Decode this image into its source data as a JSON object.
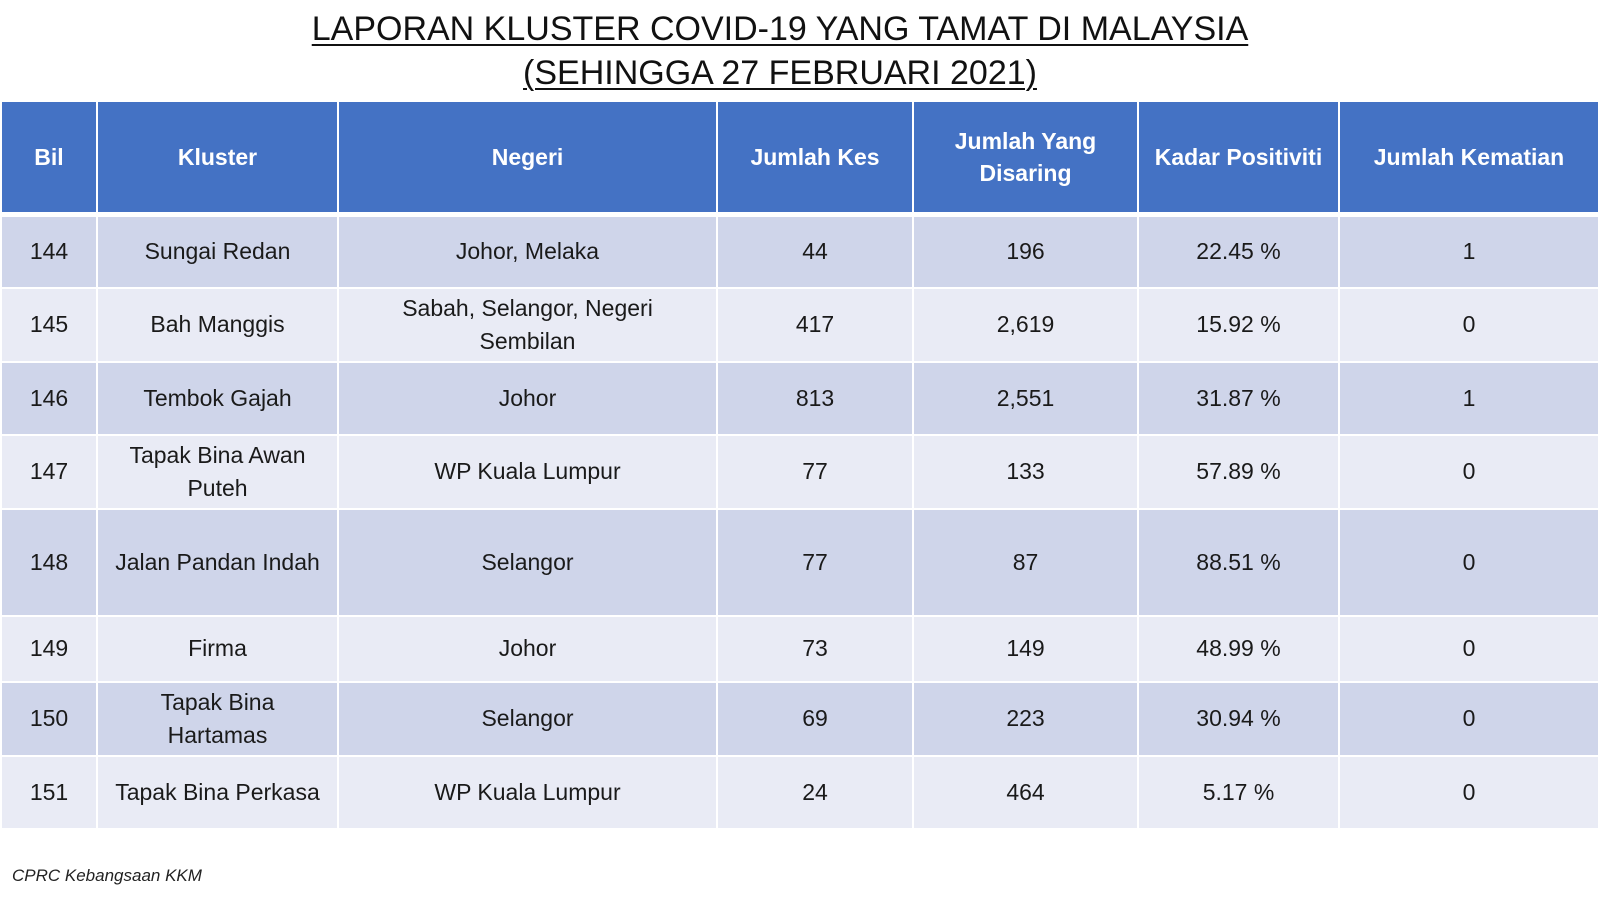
{
  "title": {
    "line1": "LAPORAN KLUSTER COVID-19 YANG TAMAT DI MALAYSIA",
    "line2": "(SEHINGGA  27 FEBRUARI 2021)"
  },
  "table": {
    "headers": [
      "Bil",
      "Kluster",
      "Negeri",
      "Jumlah Kes",
      "Jumlah Yang Disaring",
      "Kadar Positiviti",
      "Jumlah Kematian"
    ],
    "rows": [
      {
        "bil": "144",
        "kluster": "Sungai Redan",
        "negeri": "Johor, Melaka",
        "kes": "44",
        "disaring": "196",
        "positiviti": "22.45 %",
        "kematian": "1"
      },
      {
        "bil": "145",
        "kluster": "Bah Manggis",
        "negeri": "Sabah, Selangor, Negeri Sembilan",
        "kes": "417",
        "disaring": "2,619",
        "positiviti": "15.92 %",
        "kematian": "0"
      },
      {
        "bil": "146",
        "kluster": "Tembok Gajah",
        "negeri": "Johor",
        "kes": "813",
        "disaring": "2,551",
        "positiviti": "31.87 %",
        "kematian": "1"
      },
      {
        "bil": "147",
        "kluster": "Tapak Bina Awan Puteh",
        "negeri": "WP Kuala Lumpur",
        "kes": "77",
        "disaring": "133",
        "positiviti": "57.89 %",
        "kematian": "0"
      },
      {
        "bil": "148",
        "kluster": "Jalan Pandan Indah",
        "negeri": "Selangor",
        "kes": "77",
        "disaring": "87",
        "positiviti": "88.51 %",
        "kematian": "0"
      },
      {
        "bil": "149",
        "kluster": "Firma",
        "negeri": "Johor",
        "kes": "73",
        "disaring": "149",
        "positiviti": "48.99 %",
        "kematian": "0"
      },
      {
        "bil": "150",
        "kluster": "Tapak Bina Hartamas",
        "negeri": "Selangor",
        "kes": "69",
        "disaring": "223",
        "positiviti": "30.94 %",
        "kematian": "0"
      },
      {
        "bil": "151",
        "kluster": "Tapak Bina Perkasa",
        "negeri": "WP Kuala Lumpur",
        "kes": "24",
        "disaring": "464",
        "positiviti": "5.17 %",
        "kematian": "0"
      }
    ]
  },
  "footer": {
    "source": "CPRC Kebangsaan KKM"
  },
  "colors": {
    "header_bg": "#4472c4",
    "row_dark": "#cfd5ea",
    "row_light": "#e9ebf5"
  }
}
